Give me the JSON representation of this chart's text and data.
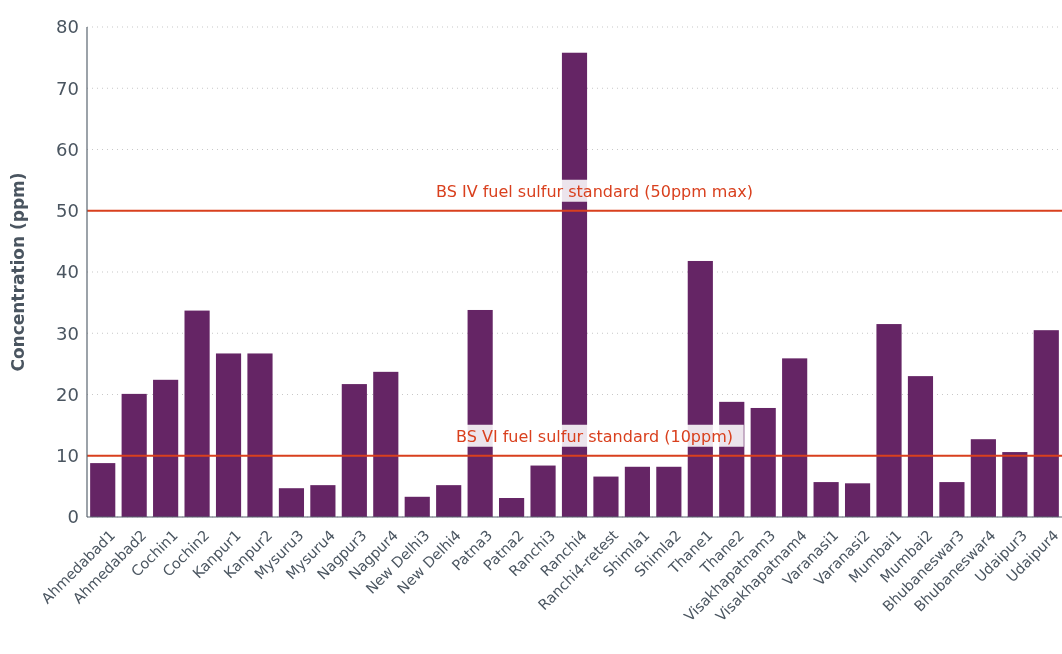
{
  "chart_data": {
    "type": "bar",
    "ylabel": "Concentration (ppm)",
    "categories": [
      "Ahmedabad1",
      "Ahmedabad2",
      "Cochin1",
      "Cochin2",
      "Kanpur1",
      "Kanpur2",
      "Mysuru3",
      "Mysuru4",
      "Nagpur3",
      "Nagpur4",
      "New Delhi3",
      "New Delhi4",
      "Patna3",
      "Patna2",
      "Ranchi3",
      "Ranchi4",
      "Ranchi4-retest",
      "Shimla1",
      "Shimla2",
      "Thane1",
      "Thane2",
      "Visakhapatnam3",
      "Visakhapatnam4",
      "Varanasi1",
      "Varanasi2",
      "Mumbai1",
      "Mumbai2",
      "Bhubaneswar3",
      "Bhubaneswar4",
      "Udaipur3",
      "Udaipur4"
    ],
    "values": [
      8.8,
      20.1,
      22.4,
      33.7,
      26.7,
      26.7,
      4.7,
      5.2,
      21.7,
      23.7,
      3.3,
      5.2,
      33.8,
      3.1,
      8.4,
      75.8,
      6.6,
      8.2,
      8.2,
      41.8,
      18.8,
      17.8,
      25.9,
      5.7,
      5.5,
      31.5,
      23.0,
      5.7,
      12.7,
      10.6,
      30.5
    ],
    "color": "#652565",
    "ylim": [
      0,
      80
    ],
    "yticks": [
      0,
      10,
      20,
      30,
      40,
      50,
      60,
      70,
      80
    ],
    "grid": "y",
    "ref_lines": [
      {
        "axis": "y",
        "value": 50,
        "label": "BS IV fuel sulfur standard (50ppm max)",
        "color": "#d9401e"
      },
      {
        "axis": "y",
        "value": 10,
        "label": "BS VI fuel sulfur standard (10ppm)",
        "color": "#d9401e"
      }
    ]
  }
}
